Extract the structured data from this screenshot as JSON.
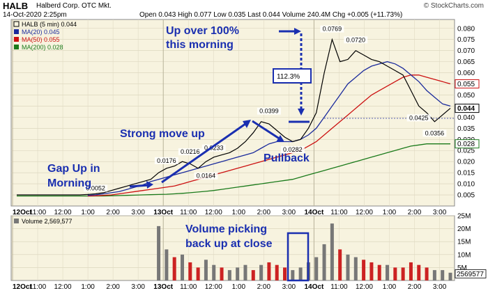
{
  "header": {
    "symbol": "HALB",
    "company": "Halberd Corp.  OTC Mkt.",
    "datetime": "14-Oct-2020 2:25pm",
    "quote": "Open 0.043  High 0.077  Low 0.035  Last 0.044  Volume 240.4M  Chg +0.005 (+11.73%)",
    "credit": "© StockCharts.com"
  },
  "legend": [
    {
      "text": "HALB (5 min) 0.044",
      "color": "#000000"
    },
    {
      "text": "MA(20) 0.045",
      "color": "#1a2a9c"
    },
    {
      "text": "MA(50) 0.055",
      "color": "#cc1010"
    },
    {
      "text": "MA(200) 0.028",
      "color": "#1a7a1a"
    }
  ],
  "volume_legend": "Volume 2,569,577",
  "colors": {
    "panel_bg": "#f7f3df",
    "price": "#000000",
    "ma20": "#1a2a9c",
    "ma50": "#cc1010",
    "ma200": "#1a7a1a",
    "annotation": "#1a2fb0",
    "vol_up": "#777777",
    "vol_down": "#cc2222"
  },
  "annotations": {
    "gap_up": "Gap Up in",
    "morning": "Morning",
    "strong_move": "Strong move up",
    "pullback": "Pullback",
    "up_over_1": "Up over 100%",
    "up_over_2": "this morning",
    "pct_box": "112.3%",
    "volume_1": "Volume picking",
    "volume_2": "back up at close"
  },
  "chart_data": [
    {
      "type": "line",
      "title": "HALB (5 min)",
      "y_axis_side": "right",
      "ylim": [
        0.0,
        0.084
      ],
      "ytick_labels": [
        "0.005",
        "0.010",
        "0.015",
        "0.020",
        "0.025",
        "0.030",
        "0.035",
        "0.040",
        "0.045",
        "0.050",
        "0.055",
        "0.060",
        "0.065",
        "0.070",
        "0.075",
        "0.080"
      ],
      "ytick_values": [
        0.005,
        0.01,
        0.015,
        0.02,
        0.025,
        0.03,
        0.035,
        0.04,
        0.045,
        0.05,
        0.055,
        0.06,
        0.065,
        0.07,
        0.075,
        0.08
      ],
      "xtick_labels": [
        "12Oct",
        "11:00",
        "12:00",
        "1:00",
        "2:00",
        "3:00",
        "13Oct",
        "11:00",
        "12:00",
        "1:00",
        "2:00",
        "3:00",
        "14Oct",
        "11:00",
        "12:00",
        "1:00",
        "2:00",
        "3:00"
      ],
      "xtick_bold": [
        "12Oct",
        "13Oct",
        "14Oct"
      ],
      "price_badges": [
        {
          "label": "0.044",
          "value": 0.044
        },
        {
          "label": "0.055",
          "value": 0.055
        },
        {
          "label": "0.028",
          "value": 0.028
        }
      ],
      "data_labels": [
        {
          "text": "0.0052",
          "value": 0.0052,
          "bar": 10
        },
        {
          "text": "0.0176",
          "value": 0.0176,
          "bar": 19
        },
        {
          "text": "0.0216",
          "value": 0.0216,
          "bar": 22
        },
        {
          "text": "0.0164",
          "value": 0.0164,
          "bar": 24
        },
        {
          "text": "0.0233",
          "value": 0.0233,
          "bar": 25
        },
        {
          "text": "0.0399",
          "value": 0.0399,
          "bar": 32
        },
        {
          "text": "0.0282",
          "value": 0.0282,
          "bar": 35
        },
        {
          "text": "0.0769",
          "value": 0.0769,
          "bar": 40
        },
        {
          "text": "0.0720",
          "value": 0.072,
          "bar": 43
        },
        {
          "text": "0.0425",
          "value": 0.0425,
          "bar": 51
        },
        {
          "text": "0.0356",
          "value": 0.0356,
          "bar": 53
        }
      ],
      "last_value_ref": 0.0395,
      "series": [
        {
          "name": "HALB (5 min)",
          "values": [
            0.005,
            0.005,
            0.005,
            0.005,
            0.005,
            0.005,
            0.005,
            0.005,
            0.005,
            0.0052,
            0.0055,
            0.006,
            0.007,
            0.008,
            0.009,
            0.01,
            0.011,
            0.012,
            0.015,
            0.017,
            0.018,
            0.02,
            0.019,
            0.017,
            0.02,
            0.022,
            0.023,
            0.024,
            0.026,
            0.029,
            0.033,
            0.038,
            0.037,
            0.034,
            0.031,
            0.029,
            0.03,
            0.035,
            0.042,
            0.06,
            0.075,
            0.065,
            0.066,
            0.07,
            0.068,
            0.066,
            0.065,
            0.063,
            0.061,
            0.059,
            0.052,
            0.045,
            0.042,
            0.038,
            0.041,
            0.044
          ]
        },
        {
          "name": "MA(20)",
          "values": [
            null,
            null,
            null,
            null,
            null,
            null,
            null,
            null,
            null,
            0.0048,
            0.005,
            0.0055,
            0.006,
            0.0065,
            0.0075,
            0.0085,
            0.0095,
            0.011,
            0.012,
            0.013,
            0.014,
            0.015,
            0.016,
            0.017,
            0.018,
            0.019,
            0.02,
            0.021,
            0.022,
            0.023,
            0.024,
            0.026,
            0.028,
            0.029,
            0.029,
            0.029,
            0.03,
            0.032,
            0.035,
            0.04,
            0.045,
            0.05,
            0.055,
            0.058,
            0.061,
            0.063,
            0.064,
            0.065,
            0.064,
            0.062,
            0.059,
            0.056,
            0.052,
            0.049,
            0.046,
            0.045
          ]
        },
        {
          "name": "MA(50)",
          "values": [
            null,
            null,
            null,
            null,
            null,
            null,
            null,
            null,
            null,
            0.0045,
            0.0046,
            0.0048,
            0.005,
            0.0055,
            0.006,
            0.0065,
            0.007,
            0.0075,
            0.008,
            0.0085,
            0.009,
            0.01,
            0.011,
            0.012,
            0.013,
            0.014,
            0.015,
            0.016,
            0.017,
            0.018,
            0.019,
            0.02,
            0.021,
            0.022,
            0.023,
            0.024,
            0.025,
            0.027,
            0.029,
            0.032,
            0.035,
            0.038,
            0.041,
            0.044,
            0.047,
            0.05,
            0.052,
            0.054,
            0.056,
            0.058,
            0.059,
            0.059,
            0.058,
            0.057,
            0.056,
            0.055
          ]
        },
        {
          "name": "MA(200)",
          "values": [
            0.0045,
            0.0045,
            0.0045,
            0.0045,
            0.0045,
            0.0045,
            0.0045,
            0.0045,
            0.0045,
            0.0045,
            0.0045,
            0.0045,
            0.0046,
            0.0047,
            0.0048,
            0.0049,
            0.005,
            0.0051,
            0.0052,
            0.0053,
            0.0055,
            0.0057,
            0.006,
            0.0063,
            0.0066,
            0.007,
            0.0075,
            0.008,
            0.0085,
            0.009,
            0.0095,
            0.01,
            0.0105,
            0.011,
            0.0115,
            0.012,
            0.013,
            0.014,
            0.015,
            0.016,
            0.017,
            0.018,
            0.019,
            0.02,
            0.021,
            0.022,
            0.023,
            0.024,
            0.025,
            0.026,
            0.027,
            0.0275,
            0.028,
            0.028,
            0.028,
            0.028
          ]
        }
      ]
    },
    {
      "type": "bar",
      "title": "Volume",
      "y_axis_side": "right",
      "ylim": [
        0,
        25000000
      ],
      "ytick_labels": [
        "5M",
        "10M",
        "15M",
        "20M",
        "25M"
      ],
      "ytick_values": [
        5000000,
        10000000,
        15000000,
        20000000,
        25000000
      ],
      "xtick_labels": [
        "12Oct",
        "11:00",
        "12:00",
        "1:00",
        "2:00",
        "3:00",
        "13Oct",
        "11:00",
        "12:00",
        "1:00",
        "2:00",
        "3:00",
        "14Oct",
        "11:00",
        "12:00",
        "1:00",
        "2:00",
        "3:00"
      ],
      "last_badge": "2569577",
      "last_value": 2569577,
      "values": [
        0,
        0,
        0,
        0,
        0,
        0,
        0,
        0,
        0,
        0,
        0,
        0,
        0,
        0,
        0,
        0,
        0,
        0,
        21000000,
        12000000,
        9000000,
        10000000,
        7000000,
        5000000,
        8000000,
        6000000,
        5000000,
        4000000,
        5000000,
        6000000,
        4000000,
        6000000,
        7000000,
        6000000,
        5000000,
        4000000,
        5000000,
        7000000,
        9000000,
        14000000,
        22000000,
        12000000,
        10000000,
        9000000,
        8000000,
        7000000,
        6000000,
        6000000,
        5000000,
        5000000,
        7000000,
        6000000,
        5000000,
        4000000,
        4000000,
        3000000
      ],
      "colors_by_bar": [
        "up",
        "up",
        "up",
        "up",
        "up",
        "up",
        "up",
        "up",
        "up",
        "up",
        "up",
        "up",
        "up",
        "up",
        "up",
        "up",
        "up",
        "up",
        "up",
        "up",
        "down",
        "up",
        "down",
        "down",
        "up",
        "up",
        "down",
        "up",
        "up",
        "up",
        "down",
        "up",
        "down",
        "down",
        "down",
        "up",
        "up",
        "up",
        "up",
        "up",
        "up",
        "down",
        "up",
        "up",
        "down",
        "down",
        "down",
        "up",
        "down",
        "down",
        "down",
        "down",
        "down",
        "up",
        "up",
        "up"
      ]
    }
  ]
}
